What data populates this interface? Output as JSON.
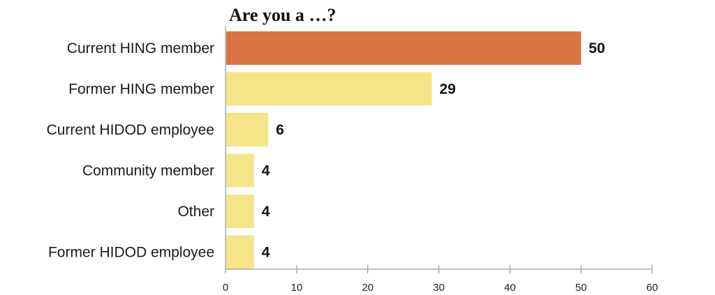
{
  "chart_data": {
    "type": "bar",
    "orientation": "horizontal",
    "title": "Are you a …?",
    "categories": [
      "Current HING member",
      "Former HING member",
      "Current HIDOD employee",
      "Community member",
      "Other",
      "Former HIDOD employee"
    ],
    "values": [
      50,
      29,
      6,
      4,
      4,
      4
    ],
    "bar_colors": [
      "#d97542",
      "#f5e488",
      "#f5e488",
      "#f5e488",
      "#f5e488",
      "#f5e488"
    ],
    "xlim": [
      0,
      60
    ],
    "xticks": [
      "0",
      "10",
      "20",
      "30",
      "40",
      "50",
      "60"
    ],
    "xlabel": "",
    "ylabel": "",
    "grid": false,
    "legend": "none"
  }
}
